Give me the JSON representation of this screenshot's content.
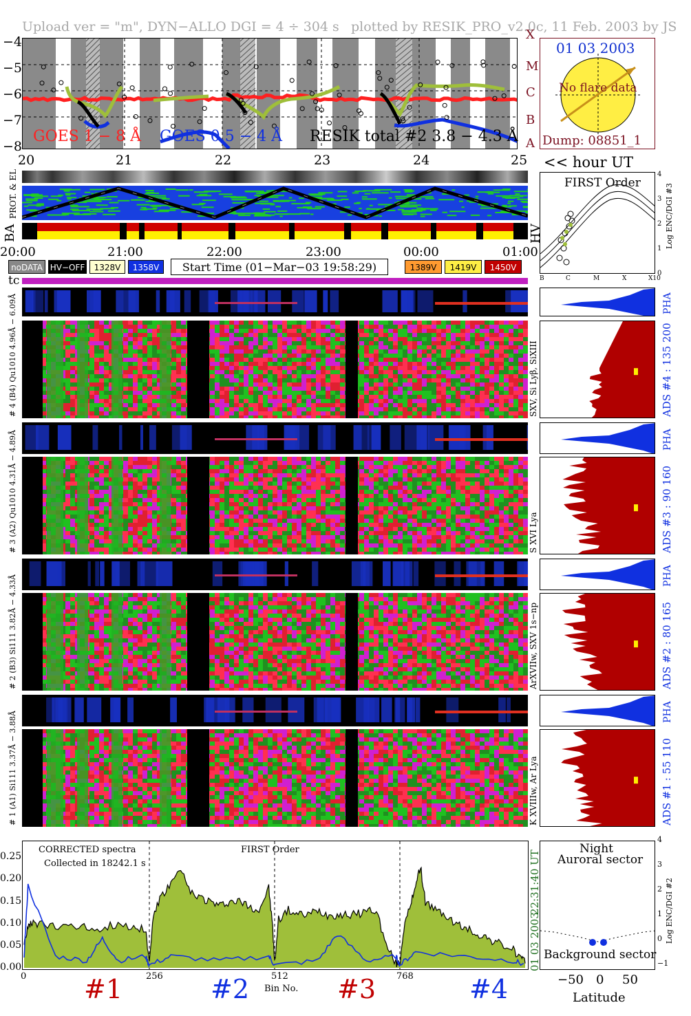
{
  "header": {
    "left": "Upload ver = \"m\", DYN−ALLO DGI =   4 ÷ 304 s",
    "right": "plotted by RESIK_PRO_v2.0c, 11 Feb. 2003 by JS"
  },
  "goes": {
    "legend": [
      "GOES 1 − 8 Å",
      "GOES 0.5 − 4 Å",
      "RESIK total #2  3.8 − 4.3 Å"
    ],
    "y_ticks": [
      "−4",
      "−5",
      "−6",
      "−7",
      "−8"
    ],
    "class_letters": [
      "X",
      "M",
      "C",
      "B",
      "A"
    ],
    "x_ticks": [
      "20",
      "21",
      "22",
      "23",
      "24",
      "25"
    ],
    "colors": {
      "goes_long": "#ff2020",
      "goes_short": "#1030e0",
      "resik": "#9fbf3a"
    }
  },
  "sun": {
    "date": "01 03 2003",
    "flare": "No flare data",
    "dump": "Dump: 08851_1"
  },
  "hour_ut": "<< hour UT",
  "orbit": {
    "labels": [
      "PROT. & EL",
      "BA",
      "HV"
    ],
    "time_ticks": [
      "20:00",
      "21:00",
      "22:00",
      "23:00",
      "00:00",
      "01:00"
    ]
  },
  "controls": {
    "buttons": [
      "noDATA",
      "HV−OFF",
      "1328V",
      "1358V"
    ],
    "start_time": "Start Time (01−Mar−03 19:58:29)",
    "hv_buttons": [
      "1389V",
      "1419V",
      "1450V"
    ]
  },
  "first_order": {
    "title": "FIRST Order",
    "ylabel": "Log ENC/DGI #3",
    "y_ticks": [
      "4",
      "3",
      "2",
      "1",
      "0"
    ],
    "x_ticks": [
      "B",
      "C",
      "M",
      "X",
      "X10"
    ]
  },
  "tc_label": "tc",
  "channels": [
    {
      "pha_label": "# 4 (B4)  Qu1010 4.96Å − 6.09Å",
      "ions": "SXV, Si Lyβ, SiXIII",
      "ads": "ADS #4 :   135 200"
    },
    {
      "pha_label": "# 3 (A2)  Qu1010  4.31Å − 4.89Å",
      "ions": "S XVI Lya",
      "ads": "ADS #3 :   90 160"
    },
    {
      "pha_label": "# 2 (B3) Si111  3.82Å − 4.33Å",
      "ions": "ArXVIIw, SXV 1s−np",
      "ads": "ADS #2 :   80 165"
    },
    {
      "pha_label": "# 1 (A1) Si111  3.37Å − 3.88Å",
      "ions": "K XVIIIw, Ar Lya",
      "ads": "ADS #1 :   55 110"
    }
  ],
  "pha_tag": "PHA",
  "spectrum": {
    "text1": "CORRECTED spectra",
    "text2": "Collected in 18242.1 s",
    "text3": "FIRST Order",
    "right_time": "22:31:40 UT",
    "right_date": "01 03 2003",
    "xlabel": "Bin No.",
    "channel_numbers": [
      "#1",
      "#2",
      "#3",
      "#4"
    ]
  },
  "night": {
    "title1": "Night",
    "title2": "Auroral sector",
    "title3": "Background sector",
    "xlabel": "Latitude",
    "ylabel": "Log ENC/DGI #2",
    "x_ticks": [
      "−50",
      "0",
      "50"
    ],
    "y_ticks": [
      "4",
      "3",
      "2",
      "1",
      "0",
      "−1"
    ]
  },
  "chart_data": {
    "type": "line",
    "title": "CORRECTED spectra",
    "xlabel": "Bin No.",
    "ylabel": "",
    "x_ticks": [
      0,
      256,
      512,
      768
    ],
    "y_ticks": [
      0.0,
      0.05,
      0.1,
      0.15,
      0.2,
      0.25
    ],
    "xlim": [
      0,
      1024
    ],
    "ylim": [
      0,
      0.28
    ],
    "segment_boundaries": [
      256,
      512,
      768
    ],
    "series": [
      {
        "color": "#9fbf3a",
        "type": "area",
        "x": [
          0,
          8,
          16,
          32,
          64,
          96,
          128,
          160,
          192,
          224,
          248,
          256,
          264,
          280,
          300,
          320,
          340,
          360,
          380,
          400,
          420,
          440,
          460,
          480,
          500,
          508,
          512,
          520,
          540,
          560,
          580,
          600,
          620,
          640,
          660,
          680,
          700,
          720,
          740,
          760,
          768,
          776,
          790,
          800,
          810,
          820,
          840,
          860,
          880,
          900,
          920,
          940,
          960,
          980,
          1000,
          1016,
          1024
        ],
        "values": [
          0.06,
          0.09,
          0.1,
          0.1,
          0.09,
          0.1,
          0.09,
          0.09,
          0.1,
          0.09,
          0.09,
          0.01,
          0.12,
          0.16,
          0.19,
          0.22,
          0.17,
          0.16,
          0.15,
          0.14,
          0.15,
          0.15,
          0.14,
          0.13,
          0.18,
          0.09,
          0.01,
          0.11,
          0.13,
          0.12,
          0.12,
          0.13,
          0.12,
          0.12,
          0.12,
          0.12,
          0.13,
          0.13,
          0.05,
          0.01,
          0.01,
          0.09,
          0.14,
          0.19,
          0.23,
          0.15,
          0.13,
          0.12,
          0.1,
          0.09,
          0.08,
          0.07,
          0.06,
          0.05,
          0.04,
          0.02,
          0.01
        ]
      },
      {
        "color": "#1030e0",
        "type": "line",
        "x": [
          0,
          8,
          64,
          128,
          160,
          192,
          248,
          256,
          300,
          400,
          500,
          512,
          600,
          640,
          700,
          760,
          768,
          800,
          900,
          1000,
          1024
        ],
        "values": [
          0.02,
          0.18,
          0.02,
          0.01,
          0.06,
          0.01,
          0.02,
          0.0,
          0.02,
          0.01,
          0.02,
          0.0,
          0.01,
          0.07,
          0.01,
          0.02,
          0.0,
          0.03,
          0.02,
          0.01,
          0.0
        ]
      }
    ]
  }
}
